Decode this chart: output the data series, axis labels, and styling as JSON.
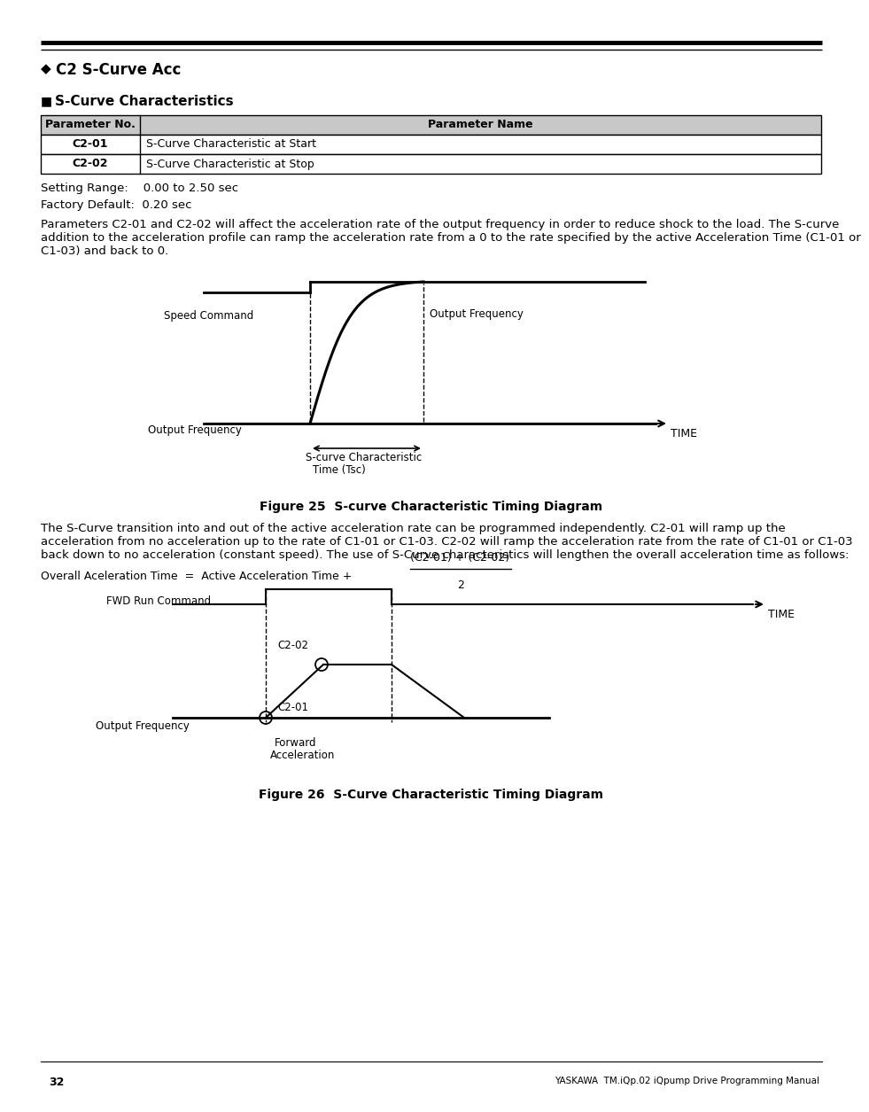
{
  "title": "C2 S-Curve Acc",
  "section": "S-Curve Characteristics",
  "table_headers": [
    "Parameter No.",
    "Parameter Name"
  ],
  "table_rows": [
    [
      "C2-01",
      "S-Curve Characteristic at Start"
    ],
    [
      "C2-02",
      "S-Curve Characteristic at Stop"
    ]
  ],
  "setting_range": "Setting Range:    0.00 to 2.50 sec",
  "factory_default": "Factory Default:  0.20 sec",
  "param_line1": "Parameters C2-01 and C2-02 will affect the acceleration rate of the output frequency in order to reduce shock to the load. The S-curve",
  "param_line2": "addition to the acceleration profile can ramp the acceleration rate from a 0 to the rate specified by the active Acceleration Time (C1-01 or",
  "param_line3": "C1-03) and back to 0.",
  "fig25_caption": "Figure 25  S-curve Characteristic Timing Diagram",
  "body_line1": "The S-Curve transition into and out of the active acceleration rate can be programmed independently. C2-01 will ramp up the",
  "body_line2": "acceleration from no acceleration up to the rate of C1-01 or C1-03. C2-02 will ramp the acceleration rate from the rate of C1-01 or C1-03",
  "body_line3": "back down to no acceleration (constant speed). The use of S-Curve characteristics will lengthen the overall acceleration time as follows:",
  "formula_left": "Overall Aceleration Time  =  Active Acceleration Time + ",
  "formula_frac_num": "(C2-01) + (C2-02)",
  "formula_frac_den": "2",
  "fig26_caption": "Figure 26  S-Curve Characteristic Timing Diagram",
  "page_number": "32",
  "footer_right": "YASKAWA  TM.iQp.02 iQpump Drive Programming Manual",
  "bg_color": "#ffffff",
  "header_bg": "#c8c8c8"
}
